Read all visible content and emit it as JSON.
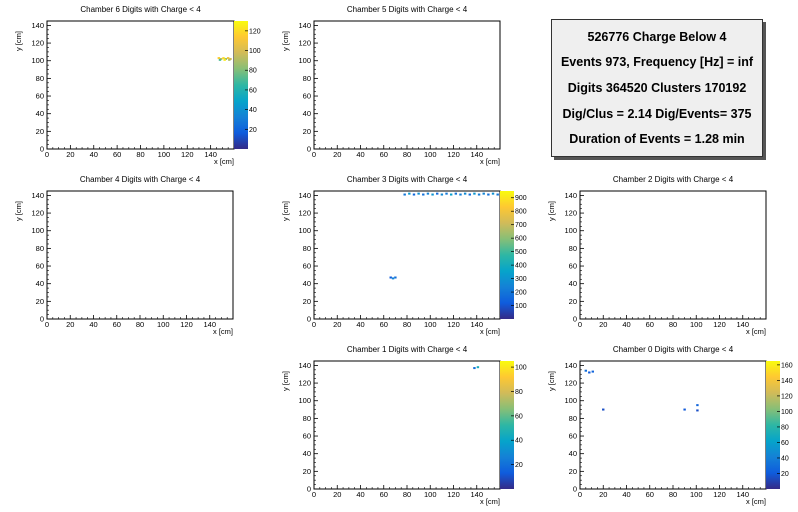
{
  "stats": {
    "line1": "526776 Charge Below 4",
    "line2": "Events 973, Frequency [Hz] = inf",
    "line3": "Digits 364520 Clusters 170192",
    "line4": "Dig/Clus = 2.14 Dig/Events= 375",
    "line5": "Duration of Events = 1.28 min"
  },
  "colors": {
    "palette": [
      "#352a87",
      "#0f5cdd",
      "#1481d6",
      "#06a4ca",
      "#2eb7a4",
      "#87bf77",
      "#d1bb59",
      "#fec832",
      "#f9fb0e"
    ]
  },
  "chart_data": [
    {
      "type": "heatmap",
      "id": "ch6",
      "title": "Chamber 6 Digits with Charge < 4",
      "xlabel": "x [cm]",
      "ylabel": "y [cm]",
      "xlim": [
        0,
        160
      ],
      "ylim": [
        0,
        145
      ],
      "xticks": [
        "0",
        "20",
        "40",
        "60",
        "80",
        "100",
        "120",
        "140"
      ],
      "yticks": [
        "0",
        "20",
        "40",
        "60",
        "80",
        "100",
        "120",
        "140"
      ],
      "colorbar": {
        "range": [
          0,
          130
        ],
        "ticks": [
          "20",
          "40",
          "60",
          "80",
          "100",
          "120"
        ]
      },
      "points": [
        {
          "x": 147,
          "y": 103,
          "v": 115
        },
        {
          "x": 149,
          "y": 102,
          "v": 95
        },
        {
          "x": 151,
          "y": 103,
          "v": 120
        },
        {
          "x": 153,
          "y": 102,
          "v": 85
        },
        {
          "x": 155,
          "y": 103,
          "v": 110
        },
        {
          "x": 157,
          "y": 102,
          "v": 100
        },
        {
          "x": 148,
          "y": 101,
          "v": 70
        },
        {
          "x": 152,
          "y": 101,
          "v": 125
        },
        {
          "x": 156,
          "y": 101,
          "v": 90
        }
      ]
    },
    {
      "type": "heatmap",
      "id": "ch5",
      "title": "Chamber 5 Digits with Charge < 4",
      "xlabel": "x [cm]",
      "ylabel": "y [cm]",
      "xlim": [
        0,
        160
      ],
      "ylim": [
        0,
        145
      ],
      "xticks": [
        "0",
        "20",
        "40",
        "60",
        "80",
        "100",
        "120",
        "140"
      ],
      "yticks": [
        "0",
        "20",
        "40",
        "60",
        "80",
        "100",
        "120",
        "140"
      ],
      "colorbar": null,
      "points": []
    },
    {
      "type": "heatmap",
      "id": "ch4",
      "title": "Chamber 4 Digits with Charge < 4",
      "xlabel": "x [cm]",
      "ylabel": "y [cm]",
      "xlim": [
        0,
        160
      ],
      "ylim": [
        0,
        145
      ],
      "xticks": [
        "0",
        "20",
        "40",
        "60",
        "80",
        "100",
        "120",
        "140"
      ],
      "yticks": [
        "0",
        "20",
        "40",
        "60",
        "80",
        "100",
        "120",
        "140"
      ],
      "colorbar": null,
      "points": []
    },
    {
      "type": "heatmap",
      "id": "ch3",
      "title": "Chamber 3 Digits with Charge < 4",
      "xlabel": "x [cm]",
      "ylabel": "y [cm]",
      "xlim": [
        0,
        160
      ],
      "ylim": [
        0,
        145
      ],
      "xticks": [
        "0",
        "20",
        "40",
        "60",
        "80",
        "100",
        "120",
        "140"
      ],
      "yticks": [
        "0",
        "20",
        "40",
        "60",
        "80",
        "100",
        "120",
        "140"
      ],
      "colorbar": {
        "range": [
          0,
          950
        ],
        "ticks": [
          "100",
          "200",
          "300",
          "400",
          "500",
          "600",
          "700",
          "800",
          "900"
        ]
      },
      "points": [
        {
          "x": 78,
          "y": 141,
          "v": 200
        },
        {
          "x": 82,
          "y": 142,
          "v": 320
        },
        {
          "x": 86,
          "y": 141,
          "v": 150
        },
        {
          "x": 90,
          "y": 142,
          "v": 280
        },
        {
          "x": 94,
          "y": 141,
          "v": 180
        },
        {
          "x": 98,
          "y": 142,
          "v": 240
        },
        {
          "x": 102,
          "y": 141,
          "v": 300
        },
        {
          "x": 106,
          "y": 142,
          "v": 160
        },
        {
          "x": 110,
          "y": 141,
          "v": 260
        },
        {
          "x": 114,
          "y": 142,
          "v": 210
        },
        {
          "x": 118,
          "y": 141,
          "v": 340
        },
        {
          "x": 122,
          "y": 142,
          "v": 190
        },
        {
          "x": 126,
          "y": 141,
          "v": 230
        },
        {
          "x": 130,
          "y": 142,
          "v": 270
        },
        {
          "x": 134,
          "y": 141,
          "v": 170
        },
        {
          "x": 138,
          "y": 142,
          "v": 310
        },
        {
          "x": 142,
          "y": 141,
          "v": 220
        },
        {
          "x": 146,
          "y": 142,
          "v": 250
        },
        {
          "x": 150,
          "y": 141,
          "v": 180
        },
        {
          "x": 154,
          "y": 142,
          "v": 290
        },
        {
          "x": 158,
          "y": 141,
          "v": 200
        },
        {
          "x": 66,
          "y": 47,
          "v": 120
        },
        {
          "x": 68,
          "y": 46,
          "v": 250
        },
        {
          "x": 70,
          "y": 47,
          "v": 180
        }
      ]
    },
    {
      "type": "heatmap",
      "id": "ch2",
      "title": "Chamber 2 Digits with Charge < 4",
      "xlabel": "x [cm]",
      "ylabel": "y [cm]",
      "xlim": [
        0,
        160
      ],
      "ylim": [
        0,
        145
      ],
      "xticks": [
        "0",
        "20",
        "40",
        "60",
        "80",
        "100",
        "120",
        "140"
      ],
      "yticks": [
        "0",
        "20",
        "40",
        "60",
        "80",
        "100",
        "120",
        "140"
      ],
      "colorbar": null,
      "points": []
    },
    {
      "type": "heatmap",
      "id": "ch1",
      "title": "Chamber 1 Digits with Charge < 4",
      "xlabel": "x [cm]",
      "ylabel": "y [cm]",
      "xlim": [
        0,
        160
      ],
      "ylim": [
        0,
        145
      ],
      "xticks": [
        "0",
        "20",
        "40",
        "60",
        "80",
        "100",
        "120",
        "140"
      ],
      "yticks": [
        "0",
        "20",
        "40",
        "60",
        "80",
        "100",
        "120",
        "140"
      ],
      "colorbar": {
        "range": [
          0,
          105
        ],
        "ticks": [
          "20",
          "40",
          "60",
          "80",
          "100"
        ]
      },
      "points": [
        {
          "x": 138,
          "y": 137,
          "v": 20
        },
        {
          "x": 141,
          "y": 138,
          "v": 45
        }
      ]
    },
    {
      "type": "heatmap",
      "id": "ch0",
      "title": "Chamber 0 Digits with Charge < 4",
      "xlabel": "x [cm]",
      "ylabel": "y [cm]",
      "xlim": [
        0,
        160
      ],
      "ylim": [
        0,
        145
      ],
      "xticks": [
        "0",
        "20",
        "40",
        "60",
        "80",
        "100",
        "120",
        "140"
      ],
      "yticks": [
        "0",
        "20",
        "40",
        "60",
        "80",
        "100",
        "120",
        "140"
      ],
      "colorbar": {
        "range": [
          0,
          165
        ],
        "ticks": [
          "20",
          "40",
          "60",
          "80",
          "100",
          "120",
          "140",
          "160"
        ]
      },
      "points": [
        {
          "x": 5,
          "y": 134,
          "v": 30
        },
        {
          "x": 8,
          "y": 132,
          "v": 20
        },
        {
          "x": 11,
          "y": 133,
          "v": 25
        },
        {
          "x": 20,
          "y": 90,
          "v": 15
        },
        {
          "x": 90,
          "y": 90,
          "v": 20
        },
        {
          "x": 101,
          "y": 95,
          "v": 25
        },
        {
          "x": 101,
          "y": 89,
          "v": 15
        }
      ]
    }
  ]
}
